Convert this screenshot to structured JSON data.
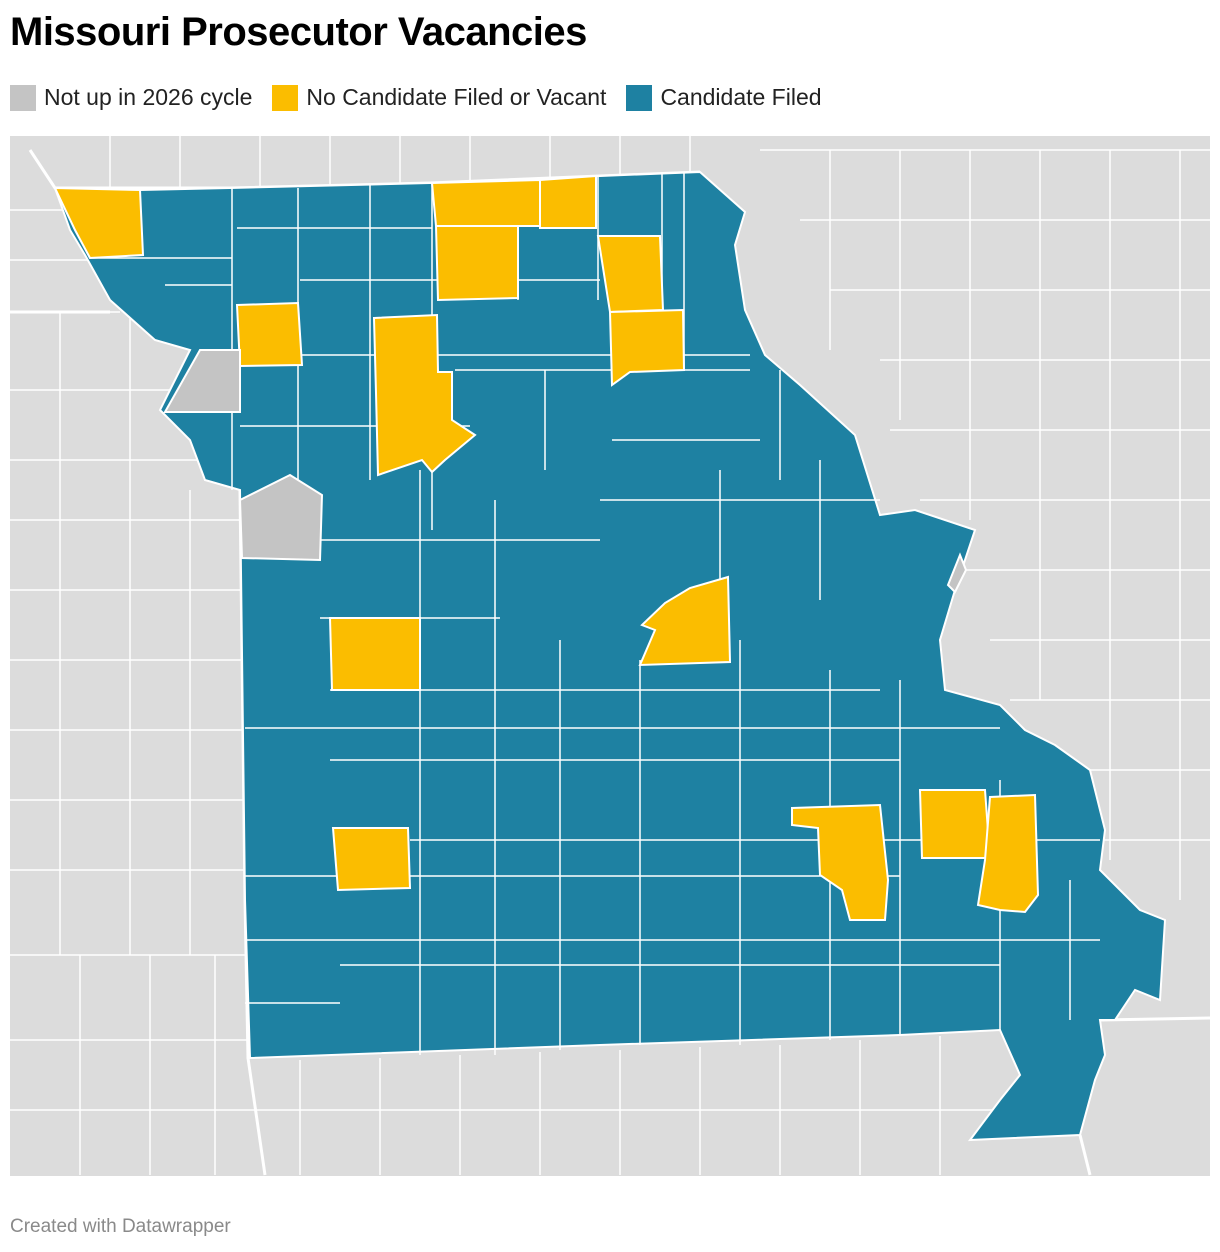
{
  "title": "Missouri Prosecutor Vacancies",
  "legend": [
    {
      "label": "Not up in 2026 cycle",
      "color": "#c4c4c4"
    },
    {
      "label": "No Candidate Filed or Vacant",
      "color": "#fbbd00"
    },
    {
      "label": "Candidate Filed",
      "color": "#1e81a2"
    }
  ],
  "footer": "Created with Datawrapper"
}
